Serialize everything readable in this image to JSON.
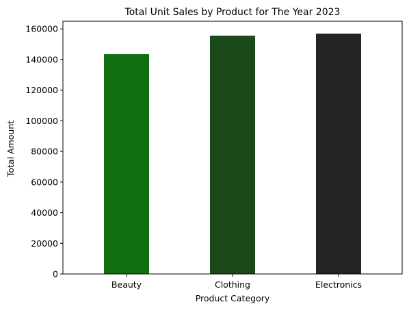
{
  "chart_data": {
    "type": "bar",
    "title": "Total Unit Sales by Product for The Year 2023",
    "xlabel": "Product Category",
    "ylabel": "Total Amount",
    "categories": [
      "Beauty",
      "Clothing",
      "Electronics"
    ],
    "values": [
      143515,
      155580,
      156905
    ],
    "colors": [
      "#0f6f10",
      "#1a4a1a",
      "#212421"
    ],
    "ylim": [
      0,
      165000
    ],
    "yticks": [
      0,
      20000,
      40000,
      60000,
      80000,
      100000,
      120000,
      140000,
      160000
    ],
    "ytick_labels": [
      "0",
      "20000",
      "40000",
      "60000",
      "80000",
      "100000",
      "120000",
      "140000",
      "160000"
    ],
    "grid": false,
    "legend": "none"
  }
}
